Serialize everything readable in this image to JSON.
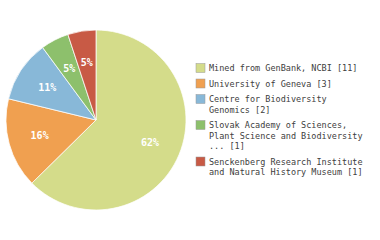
{
  "chart_data": {
    "type": "pie",
    "categories": [
      "Mined from GenBank, NCBI [11]",
      "University of Geneva [3]",
      "Centre for Biodiversity\nGenomics [2]",
      "Slovak Academy of Sciences,\nPlant Science and Biodiversity\n... [1]",
      "Senckenberg Research Institute\nand Natural History Museum [1]"
    ],
    "values": [
      62,
      16,
      11,
      5,
      5
    ],
    "value_labels": [
      "62%",
      "16%",
      "11%",
      "5%",
      "5%"
    ],
    "data_labels": true,
    "colors": [
      "#d4dc8a",
      "#f0a050",
      "#88b8d8",
      "#8dc06c",
      "#c85a45"
    ],
    "legend": "right"
  }
}
